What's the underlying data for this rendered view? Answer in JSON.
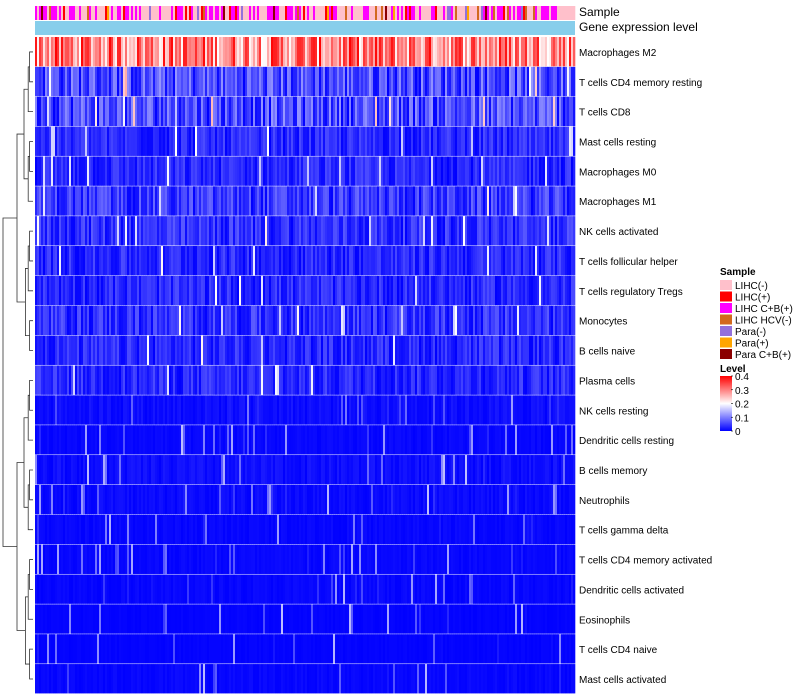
{
  "chart_data": {
    "type": "heatmap",
    "annotation_rows": [
      "Sample",
      "Gene expression level"
    ],
    "rows": [
      {
        "label": "Macrophages M2",
        "mean": 0.3
      },
      {
        "label": "T cells CD4 memory resting",
        "mean": 0.1
      },
      {
        "label": "T cells CD8",
        "mean": 0.1
      },
      {
        "label": "Mast cells resting",
        "mean": 0.05
      },
      {
        "label": "Macrophages M0",
        "mean": 0.05
      },
      {
        "label": "Macrophages M1",
        "mean": 0.07
      },
      {
        "label": "NK cells activated",
        "mean": 0.06
      },
      {
        "label": "T cells follicular helper",
        "mean": 0.05
      },
      {
        "label": "T cells regulatory  Tregs",
        "mean": 0.05
      },
      {
        "label": "Monocytes",
        "mean": 0.06
      },
      {
        "label": "B cells naive",
        "mean": 0.05
      },
      {
        "label": "Plasma cells",
        "mean": 0.05
      },
      {
        "label": "NK cells resting",
        "mean": 0.02
      },
      {
        "label": "Dendritic cells resting",
        "mean": 0.01
      },
      {
        "label": "B cells memory",
        "mean": 0.02
      },
      {
        "label": "Neutrophils",
        "mean": 0.015
      },
      {
        "label": "T cells gamma delta",
        "mean": 0.01
      },
      {
        "label": "T cells CD4 memory activated",
        "mean": 0.01
      },
      {
        "label": "Dendritic cells activated",
        "mean": 0.01
      },
      {
        "label": "Eosinophils",
        "mean": 0.005
      },
      {
        "label": "T cells CD4 naive",
        "mean": 0.005
      },
      {
        "label": "Mast cells activated",
        "mean": 0.01
      }
    ],
    "legend_sample": {
      "title": "Sample",
      "entries": [
        {
          "label": "LIHC(-)",
          "color": "#FFC0CB"
        },
        {
          "label": "LIHC(+)",
          "color": "#FF0000"
        },
        {
          "label": "LIHC C+B(+)",
          "color": "#FF00FF"
        },
        {
          "label": "LIHC HCV(-)",
          "color": "#D2691E"
        },
        {
          "label": "Para(-)",
          "color": "#9370DB"
        },
        {
          "label": "Para(+)",
          "color": "#FFA500"
        },
        {
          "label": "Para C+B(+)",
          "color": "#8B0000"
        }
      ]
    },
    "legend_level": {
      "title": "Level",
      "ticks": [
        0.4,
        0.3,
        0.2,
        0.1,
        0
      ],
      "tick_labels": [
        "0.4",
        "0.3",
        "0.2",
        "0.1",
        "0"
      ],
      "range": [
        0,
        0.4
      ],
      "colors": [
        "#0000FF",
        "#FFFFFF",
        "#FF0000"
      ]
    },
    "gene_expression_color": "#87CEEB"
  }
}
